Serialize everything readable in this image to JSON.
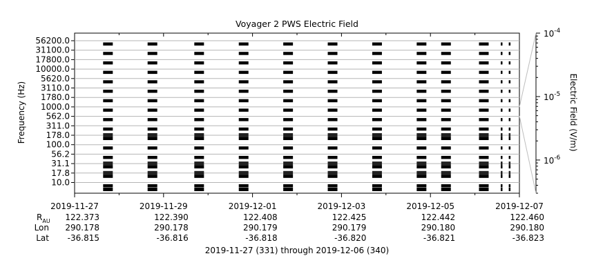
{
  "chart_data": {
    "type": "heatmap",
    "title": "Voyager 2 PWS Electric Field",
    "ylabel": "Frequency (Hz)",
    "colorbar_label": "Electric Field (V/m)",
    "colorbar_ticks": [
      {
        "label": "10",
        "exp": "-4",
        "value": 0.0001
      },
      {
        "label": "10",
        "exp": "-5",
        "value": 1e-05
      },
      {
        "label": "10",
        "exp": "-6",
        "value": 1e-06
      }
    ],
    "frequency_channels_hz": [
      "56200.0",
      "31100.0",
      "17800.0",
      "10000.0",
      "5620.0",
      "3110.0",
      "1780.0",
      "1000.0",
      "562.0",
      "311.0",
      "178.0",
      "100.0",
      "56.2",
      "31.1",
      "17.8",
      "10.0"
    ],
    "x_ticks": [
      "2019-11-27",
      "2019-11-29",
      "2019-12-01",
      "2019-12-03",
      "2019-12-05",
      "2019-12-07"
    ],
    "x_range": [
      "2019-11-27",
      "2019-12-07"
    ],
    "ephemeris": {
      "r_label": "R",
      "r_sub": "AU",
      "lon_label": "Lon",
      "lat_label": "Lat",
      "r_values": [
        "122.373",
        "122.390",
        "122.408",
        "122.425",
        "122.442",
        "122.460"
      ],
      "lon_values": [
        "290.178",
        "290.178",
        "290.179",
        "290.179",
        "290.180",
        "290.180"
      ],
      "lat_values": [
        "-36.815",
        "-36.816",
        "-36.818",
        "-36.820",
        "-36.821",
        "-36.823"
      ]
    },
    "xlabel": "2019-11-27 (331) through 2019-12-06 (340)",
    "observation_days": [
      0.75,
      1.75,
      2.8,
      3.8,
      4.8,
      5.8,
      6.8,
      7.8,
      8.35,
      9.2,
      9.6,
      9.78
    ],
    "grid": true
  }
}
